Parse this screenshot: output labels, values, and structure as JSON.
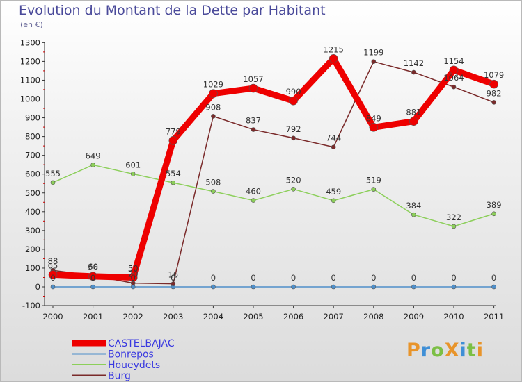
{
  "chart_data": {
    "type": "line",
    "title": "Evolution du Montant de la Dette par Habitant",
    "subtitle": "(en €)",
    "categories": [
      "2000",
      "2001",
      "2002",
      "2003",
      "2004",
      "2005",
      "2006",
      "2007",
      "2008",
      "2009",
      "2010",
      "2011"
    ],
    "ylim": [
      -100,
      1300
    ],
    "yticks": [
      -100,
      0,
      100,
      200,
      300,
      400,
      500,
      600,
      700,
      800,
      900,
      1000,
      1100,
      1200,
      1300
    ],
    "grid": false,
    "legend": "bottom-left",
    "series": [
      {
        "name": "CASTELBAJAC",
        "color": "#ee0000",
        "values": [
          65,
          56,
          50,
          779,
          1029,
          1057,
          990,
          1215,
          849,
          881,
          1154,
          1079
        ]
      },
      {
        "name": "Bonrepos",
        "color": "#4f8fc9",
        "values": [
          0,
          0,
          0,
          0,
          0,
          0,
          0,
          0,
          0,
          0,
          0,
          0
        ]
      },
      {
        "name": "Houeydets",
        "color": "#8ccf5a",
        "values": [
          555,
          649,
          601,
          554,
          508,
          460,
          520,
          459,
          519,
          384,
          322,
          389
        ]
      },
      {
        "name": "Burg",
        "color": "#7a2a2a",
        "values": [
          88,
          60,
          20,
          16,
          908,
          837,
          792,
          744,
          1199,
          1142,
          1064,
          982
        ]
      }
    ]
  },
  "logo": {
    "text": "ProXiti",
    "colors": [
      "#e8942a",
      "#3f8fd6",
      "#7cbf45",
      "#e8942a",
      "#3f8fd6",
      "#7cbf45",
      "#e8942a"
    ]
  }
}
